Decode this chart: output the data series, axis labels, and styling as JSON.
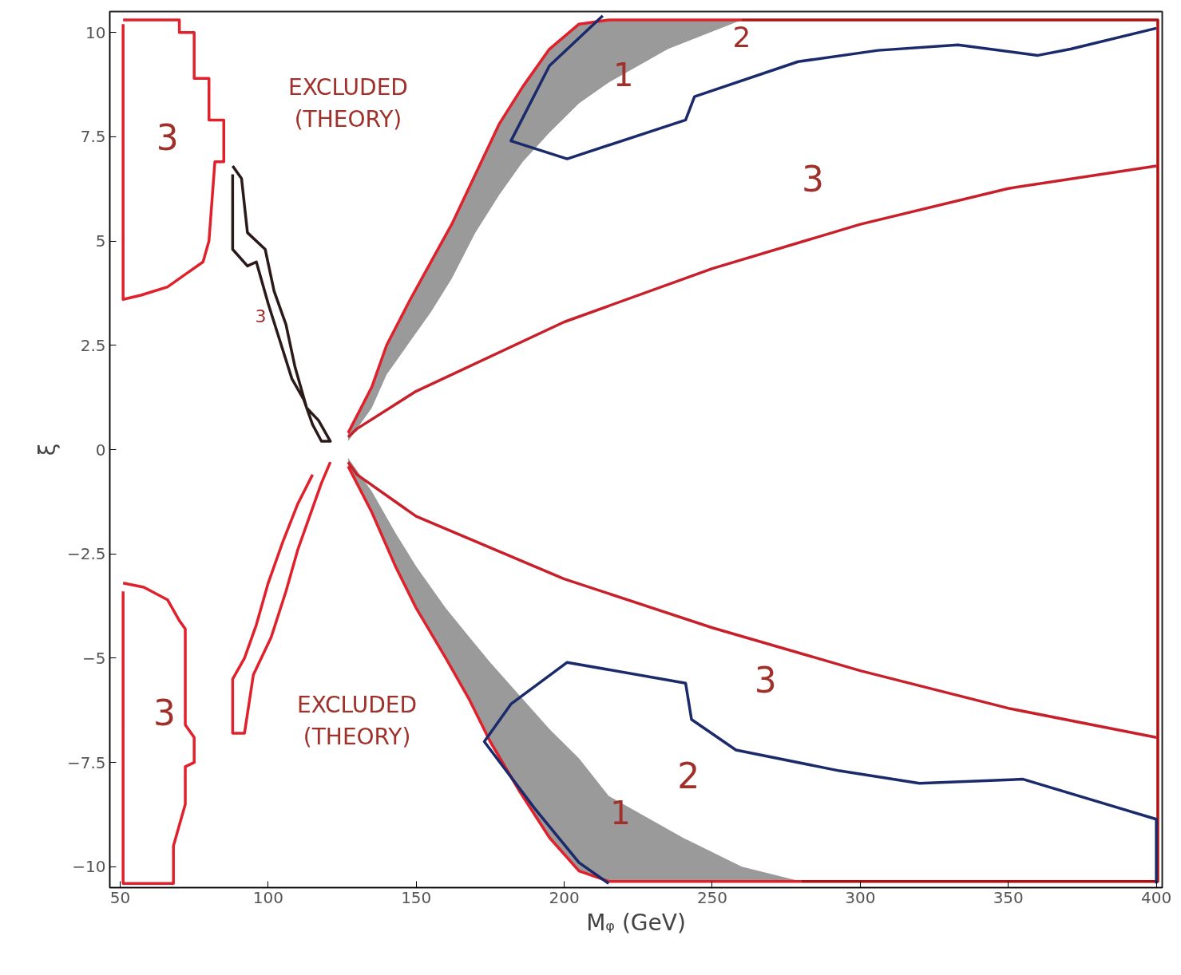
{
  "chart_data": {
    "type": "line",
    "xlabel": "Mᵩ (GeV)",
    "ylabel": "ξ",
    "xlim": [
      46.5,
      402
    ],
    "ylim": [
      -10.5,
      10.5
    ],
    "xticks": [
      50,
      100,
      150,
      200,
      250,
      300,
      350,
      400
    ],
    "yticks": [
      -10,
      -7.5,
      -5,
      -2.5,
      0,
      2.5,
      5,
      7.5,
      10
    ],
    "grid": false,
    "series": [
      {
        "color": "#e0202a",
        "x": [
          127,
          135,
          140,
          148,
          155,
          162,
          170,
          178,
          186,
          195,
          205,
          215,
          235,
          260
        ],
        "values": [
          0.4,
          1.5,
          2.5,
          3.6,
          4.5,
          5.4,
          6.6,
          7.8,
          8.7,
          9.6,
          10.2,
          10.3,
          10.3,
          10.3
        ],
        "upper": [
          0.4,
          1.5,
          2.5,
          3.6,
          4.5,
          5.4,
          6.6,
          7.8,
          8.7,
          9.6,
          10.2,
          10.3,
          10.3,
          10.3
        ],
        "lower": [
          0.2,
          1.0,
          1.8,
          2.6,
          3.3,
          4.1,
          5.2,
          6.1,
          6.9,
          7.6,
          8.3,
          8.8,
          9.6,
          10.3
        ]
      },
      {
        "color": "#e0202a",
        "x": [
          127,
          135,
          143,
          150,
          160,
          168,
          175,
          185,
          195,
          205,
          215,
          240,
          260,
          280
        ],
        "values": [
          -0.4,
          -1.5,
          -2.8,
          -3.8,
          -5.0,
          -6.0,
          -7.0,
          -8.2,
          -9.3,
          -10.1,
          -10.35,
          -10.35,
          -10.35,
          -10.35
        ],
        "upper": [
          -0.2,
          -1.0,
          -2.0,
          -2.8,
          -3.8,
          -4.5,
          -5.1,
          -5.9,
          -6.7,
          -7.4,
          -8.3,
          -9.3,
          -10.0,
          -10.35
        ],
        "lower": [
          -0.4,
          -1.5,
          -2.8,
          -3.8,
          -5.0,
          -6.0,
          -7.0,
          -8.2,
          -9.3,
          -10.1,
          -10.35,
          -10.35,
          -10.35,
          -10.35
        ]
      },
      {
        "color": "#c8202a",
        "x": [
          127,
          130,
          150,
          200,
          250,
          300,
          350,
          400
        ],
        "values": [
          0.3,
          0.5,
          1.4,
          3.06,
          4.34,
          5.4,
          6.26,
          6.8
        ]
      },
      {
        "color": "#c8202a",
        "x": [
          127,
          130,
          150,
          200,
          250,
          300,
          350,
          400
        ],
        "values": [
          -0.3,
          -0.6,
          -1.6,
          -3.1,
          -4.27,
          -5.3,
          -6.2,
          -6.9
        ]
      },
      {
        "color": "#b01010",
        "x": [
          260,
          400.5,
          400.5,
          280
        ],
        "values": [
          10.3,
          10.3,
          -10.35,
          -10.35
        ]
      },
      {
        "color": "#e0202a",
        "x": [
          51,
          70,
          70,
          75,
          75,
          80,
          80,
          85,
          85,
          82,
          80,
          78,
          72,
          66,
          57,
          51,
          51
        ],
        "values": [
          10.3,
          10.3,
          10.0,
          10.0,
          8.9,
          8.9,
          7.9,
          7.9,
          6.9,
          6.9,
          5.0,
          4.5,
          4.2,
          3.9,
          3.7,
          3.6,
          10.2
        ]
      },
      {
        "color": "#e0202a",
        "x": [
          51,
          58,
          66,
          70,
          72,
          72,
          75,
          75,
          72,
          72,
          68,
          68,
          51,
          51
        ],
        "values": [
          -3.2,
          -3.3,
          -3.6,
          -4.1,
          -4.3,
          -6.6,
          -6.9,
          -7.5,
          -7.6,
          -8.5,
          -9.5,
          -10.4,
          -10.4,
          -3.4
        ]
      },
      {
        "color": "#2a1a1a",
        "x": [
          88,
          91,
          93,
          99,
          102,
          106,
          109,
          113,
          117,
          121,
          118,
          115,
          112,
          108,
          104,
          100,
          96,
          93,
          88,
          88
        ],
        "values": [
          6.8,
          6.5,
          5.2,
          4.8,
          3.8,
          3.0,
          2.0,
          1.0,
          0.7,
          0.2,
          0.2,
          0.6,
          1.2,
          1.7,
          2.6,
          3.5,
          4.5,
          4.4,
          4.8,
          6.6
        ]
      },
      {
        "color": "#e0202a",
        "x": [
          121,
          118,
          114,
          110,
          106,
          101,
          95,
          92,
          88,
          88,
          92,
          96,
          100,
          105,
          110,
          115
        ],
        "values": [
          -0.3,
          -0.8,
          -1.6,
          -2.4,
          -3.4,
          -4.5,
          -5.4,
          -6.8,
          -6.8,
          -5.5,
          -5.0,
          -4.2,
          -3.2,
          -2.2,
          -1.3,
          -0.6
        ]
      },
      {
        "color": "#1a2a6a",
        "x": [
          213,
          195,
          182,
          201,
          241,
          244,
          279,
          306,
          333,
          360,
          371,
          400
        ],
        "values": [
          10.4,
          9.2,
          7.4,
          6.97,
          7.9,
          8.46,
          9.3,
          9.57,
          9.7,
          9.45,
          9.6,
          10.1
        ]
      },
      {
        "color": "#1a2a6a",
        "x": [
          215,
          205,
          190,
          173,
          182,
          201,
          241,
          243,
          258,
          293,
          320,
          355,
          400,
          400
        ],
        "values": [
          -10.4,
          -9.9,
          -8.6,
          -7.0,
          -6.1,
          -5.1,
          -5.6,
          -6.47,
          -7.2,
          -7.7,
          -8.0,
          -7.9,
          -8.86,
          -10.4
        ]
      }
    ],
    "annotations": [
      "EXCLUDED\n(THEORY)",
      "EXCLUDED\n(THEORY)",
      "3",
      "3",
      "3",
      "3",
      "3",
      "1",
      "1",
      "2",
      "2"
    ]
  }
}
